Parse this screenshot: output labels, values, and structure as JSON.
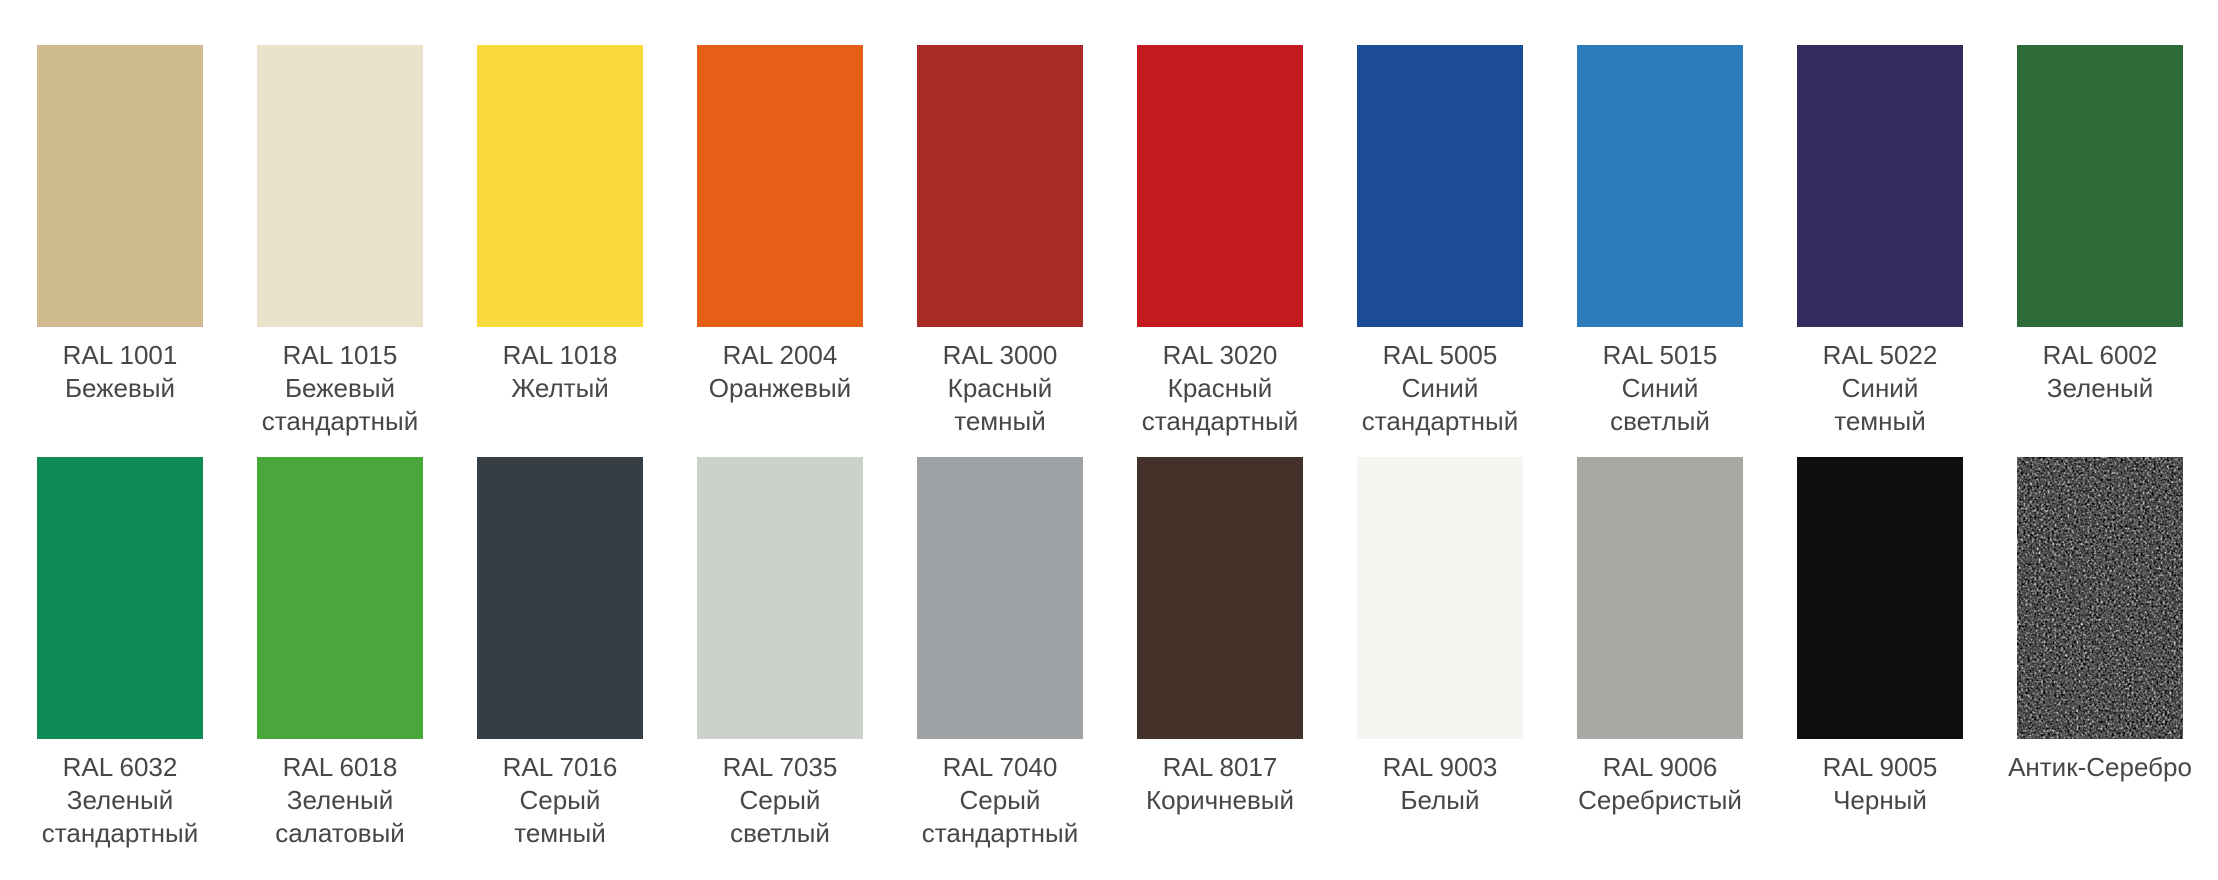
{
  "page": {
    "background": "#ffffff",
    "label_color": "#474747"
  },
  "palette": {
    "rows": [
      {
        "swatches": [
          {
            "code": "RAL 1001",
            "name_lines": [
              "Бежевый"
            ],
            "color": "#cfbb8f"
          },
          {
            "code": "RAL 1015",
            "name_lines": [
              "Бежевый",
              "стандартный"
            ],
            "color": "#eae2ca"
          },
          {
            "code": "RAL 1018",
            "name_lines": [
              "Желтый"
            ],
            "color": "#f8da3b"
          },
          {
            "code": "RAL 2004",
            "name_lines": [
              "Оранжевый"
            ],
            "color": "#e65f16"
          },
          {
            "code": "RAL 3000",
            "name_lines": [
              "Красный",
              "темный"
            ],
            "color": "#a92b25"
          },
          {
            "code": "RAL 3020",
            "name_lines": [
              "Красный",
              "стандартный"
            ],
            "color": "#c51a20"
          },
          {
            "code": "RAL 5005",
            "name_lines": [
              "Синий",
              "стандартный"
            ],
            "color": "#1c4d94"
          },
          {
            "code": "RAL 5015",
            "name_lines": [
              "Синий",
              "светлый"
            ],
            "color": "#2b7cb8"
          },
          {
            "code": "RAL 5022",
            "name_lines": [
              "Синий",
              "темный"
            ],
            "color": "#332c5e"
          },
          {
            "code": "RAL 6002",
            "name_lines": [
              "Зеленый"
            ],
            "color": "#2d6c38"
          }
        ]
      },
      {
        "swatches": [
          {
            "code": "RAL 6032",
            "name_lines": [
              "Зеленый",
              "стандартный"
            ],
            "color": "#108a56"
          },
          {
            "code": "RAL 6018",
            "name_lines": [
              "Зеленый",
              "салатовый"
            ],
            "color": "#4aa73c"
          },
          {
            "code": "RAL 7016",
            "name_lines": [
              "Серый",
              "темный"
            ],
            "color": "#373e43"
          },
          {
            "code": "RAL 7035",
            "name_lines": [
              "Серый",
              "светлый"
            ],
            "color": "#cdd1cb"
          },
          {
            "code": "RAL 7040",
            "name_lines": [
              "Серый",
              "стандартный"
            ],
            "color": "#9ca1a6"
          },
          {
            "code": "RAL 8017",
            "name_lines": [
              "Коричневый"
            ],
            "color": "#43312a"
          },
          {
            "code": "RAL 9003",
            "name_lines": [
              "Белый"
            ],
            "color": "#f2f5f0"
          },
          {
            "code": "RAL 9006",
            "name_lines": [
              "Серебристый"
            ],
            "color": "#a7a9a5"
          },
          {
            "code": "RAL 9005",
            "name_lines": [
              "Черный"
            ],
            "color": "#0e0e10"
          },
          {
            "code": "",
            "name_lines": [
              "Антик-Серебро"
            ],
            "color": "#111111",
            "texture": "antique-silver-speckle"
          }
        ]
      }
    ]
  }
}
